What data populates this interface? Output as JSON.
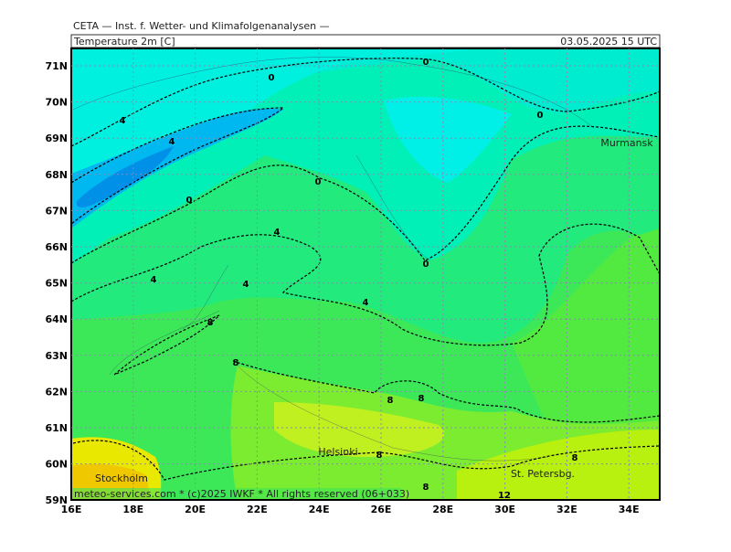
{
  "header": {
    "institute": "CETA — Inst. f. Wetter- und Klimafolgenanalysen —",
    "field": "Temperature 2m [C]",
    "time": "03.05.2025 15 UTC"
  },
  "axes": {
    "lat_labels": [
      "71N",
      "70N",
      "69N",
      "68N",
      "67N",
      "66N",
      "65N",
      "64N",
      "63N",
      "62N",
      "61N",
      "60N",
      "59N"
    ],
    "lon_labels": [
      "16E",
      "18E",
      "20E",
      "22E",
      "24E",
      "26E",
      "28E",
      "30E",
      "32E",
      "34E"
    ]
  },
  "cities": [
    "Murmansk",
    "Helsinki",
    "Stockholm",
    "St. Petersbg."
  ],
  "contour_labels": [
    0,
    0,
    0,
    0,
    0,
    0,
    4,
    4,
    4,
    4,
    4,
    4,
    8,
    8,
    8,
    8,
    8,
    8,
    8,
    12
  ],
  "footer": "meteo-services.com * (c)2025 IWKF * All rights reserved (06+033)"
}
